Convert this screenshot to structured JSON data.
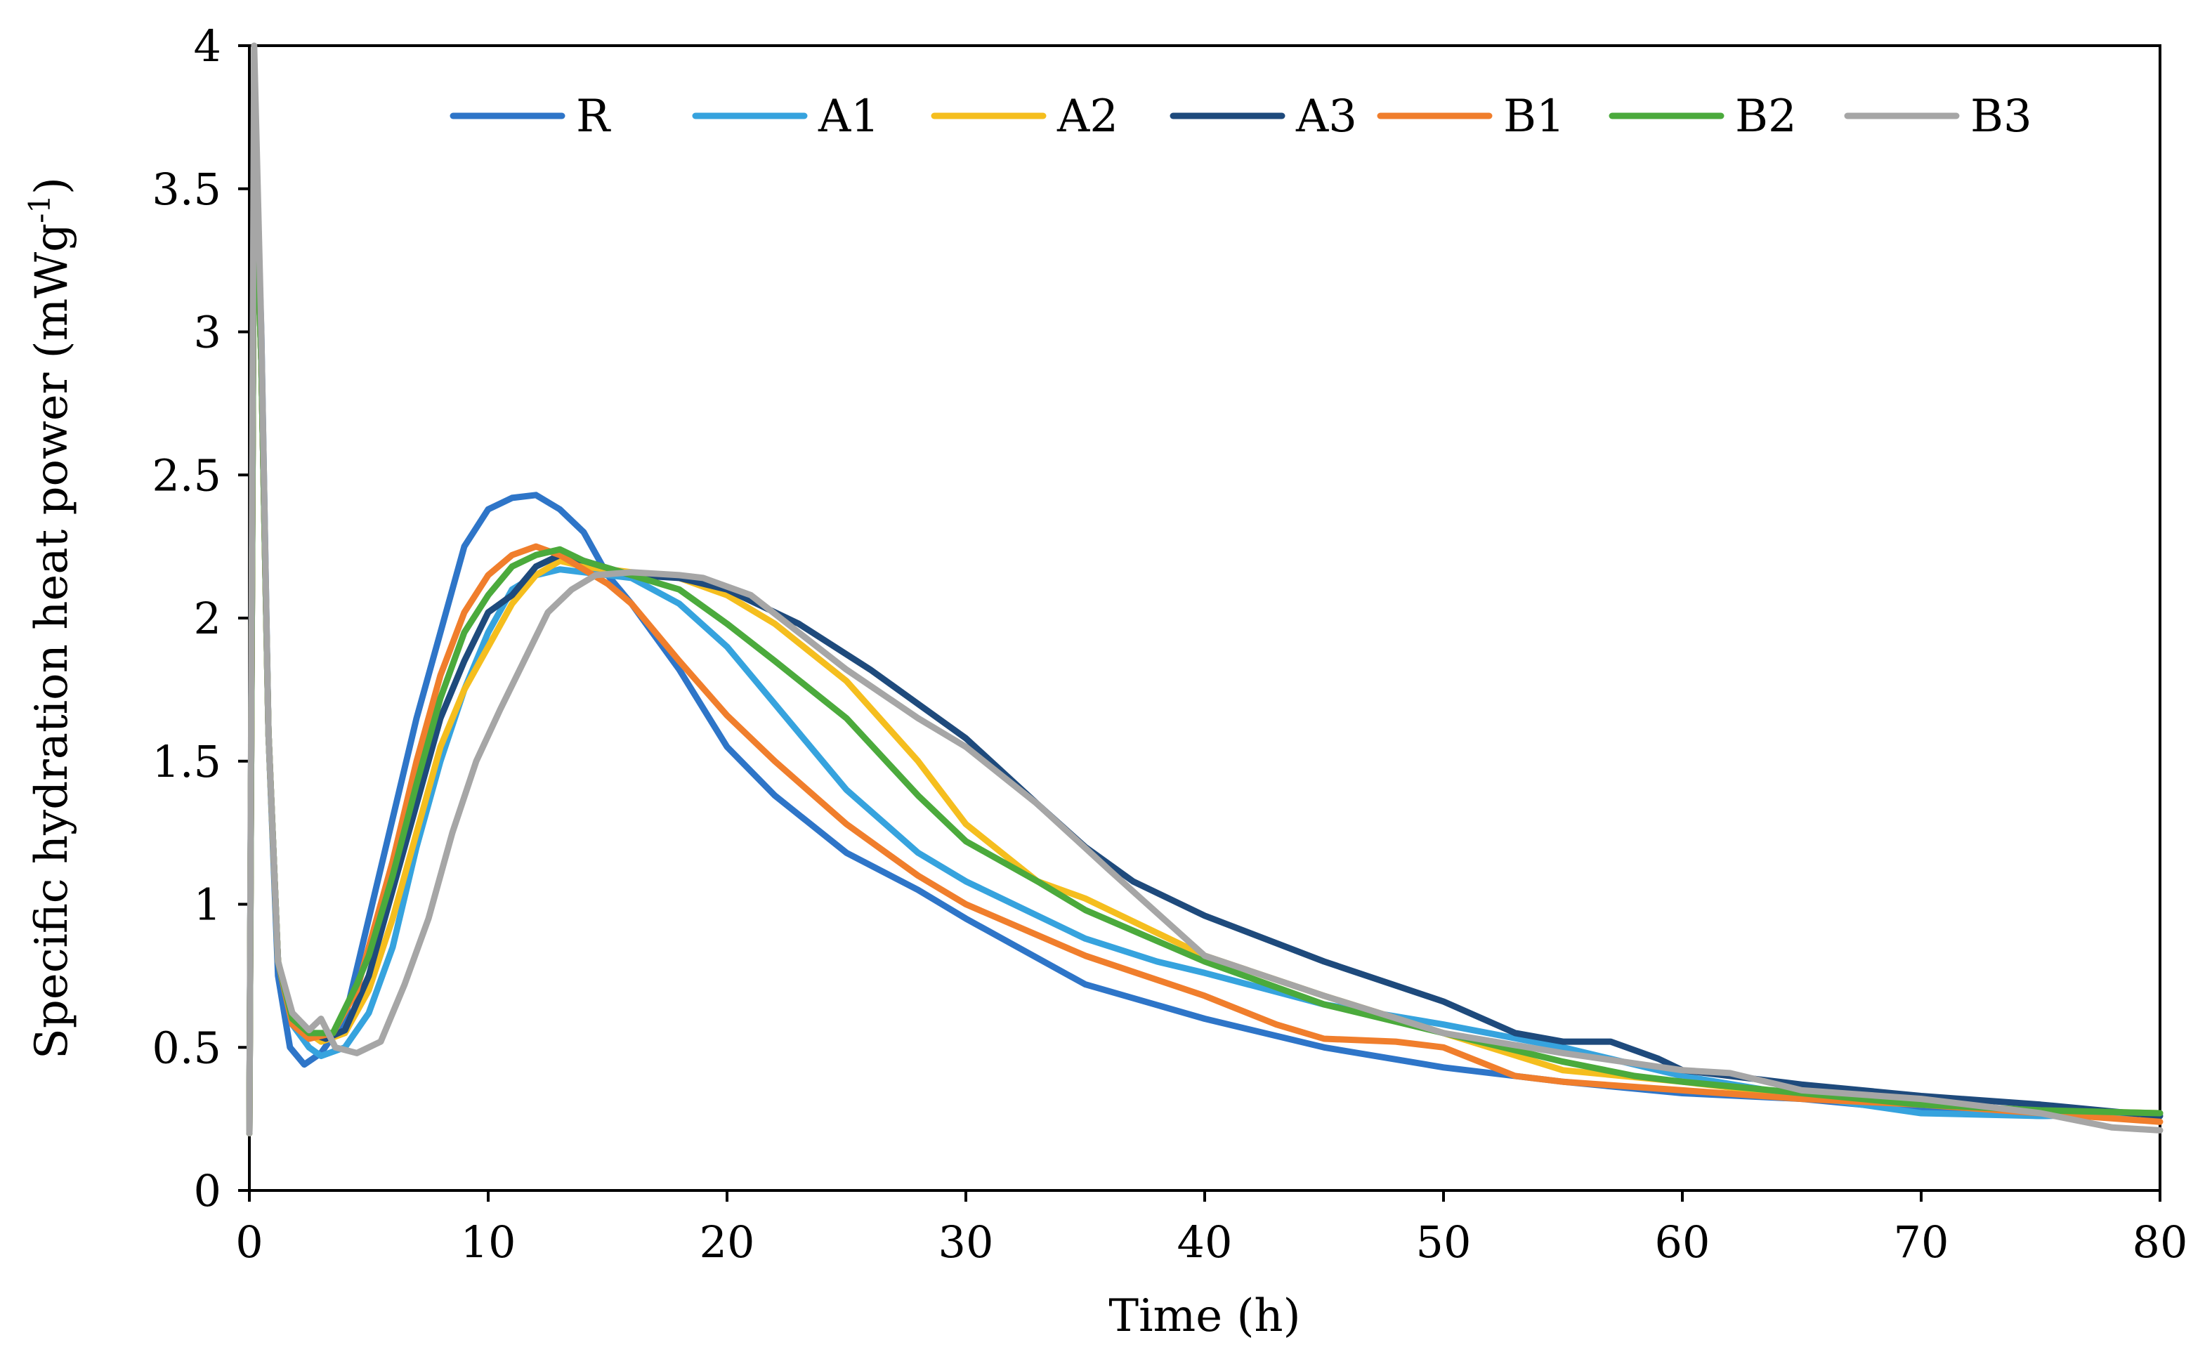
{
  "chart_data": {
    "type": "line",
    "xlabel": "Time (h)",
    "ylabel": "Specific hydration heat power (mWg",
    "ylabel_sup": "-1",
    "ylabel_suffix": ")",
    "xlim": [
      0,
      80
    ],
    "ylim": [
      0,
      4
    ],
    "xticks": [
      0,
      10,
      20,
      30,
      40,
      50,
      60,
      70,
      80
    ],
    "yticks": [
      0,
      0.5,
      1,
      1.5,
      2,
      2.5,
      3,
      3.5,
      4
    ],
    "ytick_labels": [
      "0",
      "0.5",
      "1",
      "1.5",
      "2",
      "2.5",
      "3",
      "3.5",
      "4"
    ],
    "grid": false,
    "legend_position": "top",
    "series": [
      {
        "name": "R",
        "color": "#2E75C8",
        "points": [
          [
            0,
            0.2
          ],
          [
            0.2,
            3.8
          ],
          [
            0.5,
            3.0
          ],
          [
            0.8,
            1.6
          ],
          [
            1.2,
            0.75
          ],
          [
            1.7,
            0.5
          ],
          [
            2.3,
            0.44
          ],
          [
            3,
            0.48
          ],
          [
            4,
            0.6
          ],
          [
            5,
            0.95
          ],
          [
            6,
            1.3
          ],
          [
            7,
            1.65
          ],
          [
            8,
            1.95
          ],
          [
            9,
            2.25
          ],
          [
            10,
            2.38
          ],
          [
            11,
            2.42
          ],
          [
            12,
            2.43
          ],
          [
            13,
            2.38
          ],
          [
            14,
            2.3
          ],
          [
            15,
            2.15
          ],
          [
            16,
            2.05
          ],
          [
            18,
            1.82
          ],
          [
            20,
            1.55
          ],
          [
            22,
            1.38
          ],
          [
            25,
            1.18
          ],
          [
            28,
            1.05
          ],
          [
            30,
            0.95
          ],
          [
            35,
            0.72
          ],
          [
            40,
            0.6
          ],
          [
            45,
            0.5
          ],
          [
            50,
            0.43
          ],
          [
            55,
            0.38
          ],
          [
            60,
            0.34
          ],
          [
            65,
            0.32
          ],
          [
            70,
            0.28
          ],
          [
            75,
            0.26
          ],
          [
            80,
            0.27
          ]
        ]
      },
      {
        "name": "A1",
        "color": "#36A3DE",
        "points": [
          [
            0,
            0.2
          ],
          [
            0.2,
            3.7
          ],
          [
            0.5,
            2.9
          ],
          [
            0.8,
            1.6
          ],
          [
            1.2,
            0.8
          ],
          [
            1.8,
            0.58
          ],
          [
            2.5,
            0.5
          ],
          [
            3,
            0.47
          ],
          [
            4,
            0.5
          ],
          [
            5,
            0.62
          ],
          [
            6,
            0.85
          ],
          [
            7,
            1.2
          ],
          [
            8,
            1.5
          ],
          [
            9,
            1.75
          ],
          [
            10,
            1.95
          ],
          [
            11,
            2.1
          ],
          [
            12,
            2.15
          ],
          [
            13,
            2.17
          ],
          [
            14,
            2.16
          ],
          [
            16,
            2.14
          ],
          [
            18,
            2.05
          ],
          [
            20,
            1.9
          ],
          [
            22,
            1.7
          ],
          [
            25,
            1.4
          ],
          [
            28,
            1.18
          ],
          [
            30,
            1.08
          ],
          [
            35,
            0.88
          ],
          [
            38,
            0.8
          ],
          [
            40,
            0.76
          ],
          [
            45,
            0.65
          ],
          [
            50,
            0.58
          ],
          [
            55,
            0.5
          ],
          [
            60,
            0.4
          ],
          [
            65,
            0.33
          ],
          [
            70,
            0.27
          ],
          [
            75,
            0.26
          ],
          [
            80,
            0.27
          ]
        ]
      },
      {
        "name": "A2",
        "color": "#F5BE1E",
        "points": [
          [
            0,
            0.2
          ],
          [
            0.2,
            3.7
          ],
          [
            0.5,
            2.9
          ],
          [
            0.8,
            1.6
          ],
          [
            1.2,
            0.8
          ],
          [
            1.8,
            0.6
          ],
          [
            2.5,
            0.55
          ],
          [
            3,
            0.52
          ],
          [
            4,
            0.55
          ],
          [
            5,
            0.7
          ],
          [
            6,
            0.95
          ],
          [
            7,
            1.25
          ],
          [
            8,
            1.55
          ],
          [
            9,
            1.75
          ],
          [
            10,
            1.9
          ],
          [
            11,
            2.05
          ],
          [
            12,
            2.15
          ],
          [
            13,
            2.2
          ],
          [
            14,
            2.18
          ],
          [
            16,
            2.16
          ],
          [
            18,
            2.14
          ],
          [
            20,
            2.08
          ],
          [
            22,
            1.98
          ],
          [
            25,
            1.78
          ],
          [
            28,
            1.5
          ],
          [
            30,
            1.28
          ],
          [
            33,
            1.08
          ],
          [
            35,
            1.02
          ],
          [
            40,
            0.82
          ],
          [
            45,
            0.68
          ],
          [
            50,
            0.55
          ],
          [
            55,
            0.42
          ],
          [
            60,
            0.38
          ],
          [
            65,
            0.33
          ],
          [
            70,
            0.3
          ],
          [
            75,
            0.28
          ],
          [
            80,
            0.27
          ]
        ]
      },
      {
        "name": "A3",
        "color": "#1E4A7C",
        "points": [
          [
            0,
            0.2
          ],
          [
            0.2,
            3.7
          ],
          [
            0.5,
            2.9
          ],
          [
            0.8,
            1.6
          ],
          [
            1.2,
            0.8
          ],
          [
            1.8,
            0.6
          ],
          [
            2.5,
            0.55
          ],
          [
            3.2,
            0.53
          ],
          [
            4,
            0.56
          ],
          [
            5,
            0.75
          ],
          [
            6,
            1.05
          ],
          [
            7,
            1.35
          ],
          [
            8,
            1.65
          ],
          [
            9,
            1.85
          ],
          [
            10,
            2.02
          ],
          [
            11,
            2.08
          ],
          [
            12,
            2.18
          ],
          [
            13,
            2.22
          ],
          [
            14,
            2.2
          ],
          [
            16,
            2.15
          ],
          [
            18,
            2.14
          ],
          [
            20,
            2.1
          ],
          [
            23,
            1.98
          ],
          [
            26,
            1.82
          ],
          [
            30,
            1.58
          ],
          [
            33,
            1.35
          ],
          [
            35,
            1.2
          ],
          [
            37,
            1.08
          ],
          [
            40,
            0.96
          ],
          [
            45,
            0.8
          ],
          [
            50,
            0.66
          ],
          [
            53,
            0.55
          ],
          [
            55,
            0.52
          ],
          [
            57,
            0.52
          ],
          [
            59,
            0.46
          ],
          [
            60,
            0.42
          ],
          [
            65,
            0.37
          ],
          [
            70,
            0.33
          ],
          [
            75,
            0.3
          ],
          [
            80,
            0.26
          ]
        ]
      },
      {
        "name": "B1",
        "color": "#F07E2C",
        "points": [
          [
            0,
            0.2
          ],
          [
            0.2,
            3.7
          ],
          [
            0.5,
            2.9
          ],
          [
            0.8,
            1.6
          ],
          [
            1.2,
            0.8
          ],
          [
            1.8,
            0.58
          ],
          [
            2.5,
            0.53
          ],
          [
            3.5,
            0.55
          ],
          [
            4.5,
            0.7
          ],
          [
            5,
            0.85
          ],
          [
            6,
            1.15
          ],
          [
            7,
            1.5
          ],
          [
            8,
            1.8
          ],
          [
            9,
            2.02
          ],
          [
            10,
            2.15
          ],
          [
            11,
            2.22
          ],
          [
            12,
            2.25
          ],
          [
            13,
            2.22
          ],
          [
            14,
            2.17
          ],
          [
            15,
            2.12
          ],
          [
            16,
            2.05
          ],
          [
            18,
            1.85
          ],
          [
            20,
            1.66
          ],
          [
            22,
            1.5
          ],
          [
            25,
            1.28
          ],
          [
            28,
            1.1
          ],
          [
            30,
            1.0
          ],
          [
            35,
            0.82
          ],
          [
            40,
            0.68
          ],
          [
            43,
            0.58
          ],
          [
            45,
            0.53
          ],
          [
            48,
            0.52
          ],
          [
            50,
            0.5
          ],
          [
            53,
            0.4
          ],
          [
            55,
            0.38
          ],
          [
            60,
            0.35
          ],
          [
            65,
            0.32
          ],
          [
            70,
            0.3
          ],
          [
            75,
            0.27
          ],
          [
            80,
            0.24
          ]
        ]
      },
      {
        "name": "B2",
        "color": "#4BAA3C",
        "points": [
          [
            0,
            0.2
          ],
          [
            0.2,
            3.7
          ],
          [
            0.5,
            2.9
          ],
          [
            0.8,
            1.6
          ],
          [
            1.2,
            0.8
          ],
          [
            1.8,
            0.6
          ],
          [
            2.5,
            0.55
          ],
          [
            3.5,
            0.55
          ],
          [
            4.5,
            0.72
          ],
          [
            5,
            0.82
          ],
          [
            6,
            1.1
          ],
          [
            7,
            1.42
          ],
          [
            8,
            1.72
          ],
          [
            9,
            1.95
          ],
          [
            10,
            2.08
          ],
          [
            11,
            2.18
          ],
          [
            12,
            2.22
          ],
          [
            13,
            2.24
          ],
          [
            14,
            2.2
          ],
          [
            16,
            2.15
          ],
          [
            18,
            2.1
          ],
          [
            20,
            1.98
          ],
          [
            22,
            1.85
          ],
          [
            25,
            1.65
          ],
          [
            28,
            1.38
          ],
          [
            30,
            1.22
          ],
          [
            33,
            1.08
          ],
          [
            35,
            0.98
          ],
          [
            40,
            0.8
          ],
          [
            45,
            0.65
          ],
          [
            50,
            0.55
          ],
          [
            55,
            0.45
          ],
          [
            58,
            0.4
          ],
          [
            60,
            0.38
          ],
          [
            65,
            0.34
          ],
          [
            70,
            0.3
          ],
          [
            75,
            0.28
          ],
          [
            80,
            0.27
          ]
        ]
      },
      {
        "name": "B3",
        "color": "#A6A6A6",
        "points": [
          [
            0,
            0.2
          ],
          [
            0.2,
            4.0
          ],
          [
            0.5,
            3.0
          ],
          [
            0.8,
            1.6
          ],
          [
            1.2,
            0.8
          ],
          [
            1.8,
            0.62
          ],
          [
            2.5,
            0.56
          ],
          [
            3,
            0.6
          ],
          [
            3.6,
            0.5
          ],
          [
            4.5,
            0.48
          ],
          [
            5.5,
            0.52
          ],
          [
            6.5,
            0.72
          ],
          [
            7.5,
            0.95
          ],
          [
            8.5,
            1.25
          ],
          [
            9.5,
            1.5
          ],
          [
            10.5,
            1.68
          ],
          [
            11.5,
            1.85
          ],
          [
            12.5,
            2.02
          ],
          [
            13.5,
            2.1
          ],
          [
            14.5,
            2.15
          ],
          [
            16,
            2.16
          ],
          [
            18,
            2.15
          ],
          [
            19,
            2.14
          ],
          [
            21,
            2.08
          ],
          [
            23,
            1.95
          ],
          [
            25,
            1.82
          ],
          [
            28,
            1.65
          ],
          [
            30,
            1.55
          ],
          [
            33,
            1.35
          ],
          [
            36,
            1.12
          ],
          [
            40,
            0.82
          ],
          [
            45,
            0.68
          ],
          [
            50,
            0.55
          ],
          [
            55,
            0.48
          ],
          [
            60,
            0.42
          ],
          [
            62,
            0.41
          ],
          [
            65,
            0.35
          ],
          [
            70,
            0.32
          ],
          [
            75,
            0.27
          ],
          [
            78,
            0.22
          ],
          [
            80,
            0.21
          ]
        ]
      }
    ]
  }
}
